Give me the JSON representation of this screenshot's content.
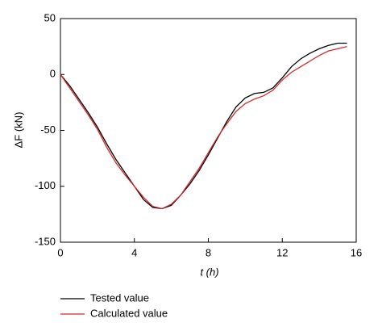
{
  "chart_data": {
    "type": "line",
    "x": [
      0,
      0.5,
      1,
      1.5,
      2,
      2.5,
      3,
      3.5,
      4,
      4.5,
      5,
      5.5,
      6,
      6.5,
      7,
      7.5,
      8,
      8.5,
      9,
      9.5,
      10,
      10.5,
      11,
      11.5,
      12,
      12.5,
      13,
      13.5,
      14,
      14.5,
      15,
      15.5
    ],
    "series": [
      {
        "name": "Tested value",
        "color": "#000000",
        "values": [
          0,
          -10,
          -22,
          -34,
          -47,
          -62,
          -76,
          -88,
          -100,
          -112,
          -119,
          -120,
          -117,
          -108,
          -98,
          -86,
          -72,
          -57,
          -42,
          -29,
          -21,
          -17,
          -16,
          -12,
          -3,
          7,
          14,
          19,
          23,
          26,
          28,
          28
        ]
      },
      {
        "name": "Calculated value",
        "color": "#d62728",
        "values": [
          0,
          -12,
          -24,
          -36,
          -49,
          -65,
          -79,
          -90,
          -100,
          -110,
          -118,
          -120,
          -116,
          -108,
          -96,
          -84,
          -70,
          -56,
          -44,
          -33,
          -26,
          -22,
          -19,
          -14,
          -5,
          2,
          7,
          12,
          17,
          21,
          23,
          25
        ]
      }
    ],
    "xlabel": "t (h)",
    "ylabel": "ΔF (kN)",
    "xlim": [
      0,
      16
    ],
    "xticks": [
      0,
      4,
      8,
      12,
      16
    ],
    "ylim": [
      -150,
      50
    ],
    "yticks": [
      -150,
      -100,
      -50,
      0,
      50
    ],
    "legend": "bottom-left"
  }
}
